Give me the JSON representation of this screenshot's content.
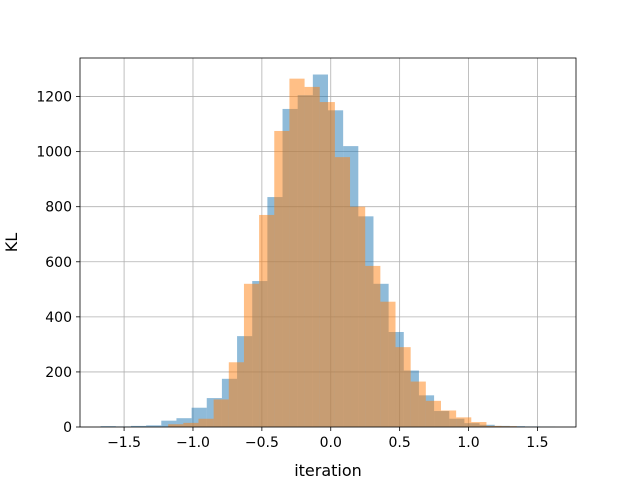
{
  "chart_data": {
    "type": "histogram",
    "title": "",
    "xlabel": "iteration",
    "ylabel": "KL",
    "xlim": [
      -1.82,
      1.78
    ],
    "ylim": [
      0,
      1340
    ],
    "grid": true,
    "legend": "none",
    "xticks": [
      -1.5,
      -1.0,
      -0.5,
      0.0,
      0.5,
      1.0,
      1.5
    ],
    "xtick_labels": [
      "−1.5",
      "−1.0",
      "−0.5",
      "0.0",
      "0.5",
      "1.0",
      "1.5"
    ],
    "yticks": [
      0,
      200,
      400,
      600,
      800,
      1000,
      1200
    ],
    "ytick_labels": [
      "0",
      "200",
      "400",
      "600",
      "800",
      "1000",
      "1200"
    ],
    "series": [
      {
        "color": "#1f77b4",
        "opacity": 0.5,
        "bin_edges": [
          -1.67,
          -1.56,
          -1.45,
          -1.34,
          -1.23,
          -1.12,
          -1.01,
          -0.9,
          -0.79,
          -0.68,
          -0.57,
          -0.46,
          -0.35,
          -0.24,
          -0.13,
          -0.02,
          0.09,
          0.2,
          0.31,
          0.42,
          0.53,
          0.64,
          0.75,
          0.86,
          0.97,
          1.08,
          1.19,
          1.3,
          1.41,
          1.52,
          1.63
        ],
        "counts": [
          3,
          2,
          4,
          6,
          23,
          32,
          70,
          105,
          175,
          330,
          530,
          835,
          1155,
          1205,
          1280,
          1150,
          1020,
          765,
          520,
          345,
          205,
          115,
          58,
          30,
          14,
          8,
          4,
          3,
          2,
          1
        ]
      },
      {
        "color": "#ff7f0e",
        "opacity": 0.5,
        "bin_edges": [
          -1.18,
          -1.07,
          -0.96,
          -0.85,
          -0.74,
          -0.63,
          -0.52,
          -0.41,
          -0.3,
          -0.19,
          -0.08,
          0.03,
          0.14,
          0.25,
          0.36,
          0.47,
          0.58,
          0.69,
          0.8,
          0.91,
          1.02,
          1.13,
          1.24,
          1.35
        ],
        "counts": [
          10,
          15,
          30,
          100,
          235,
          520,
          770,
          1075,
          1265,
          1235,
          1180,
          980,
          800,
          585,
          455,
          290,
          165,
          95,
          60,
          35,
          18,
          4,
          3
        ]
      }
    ]
  }
}
